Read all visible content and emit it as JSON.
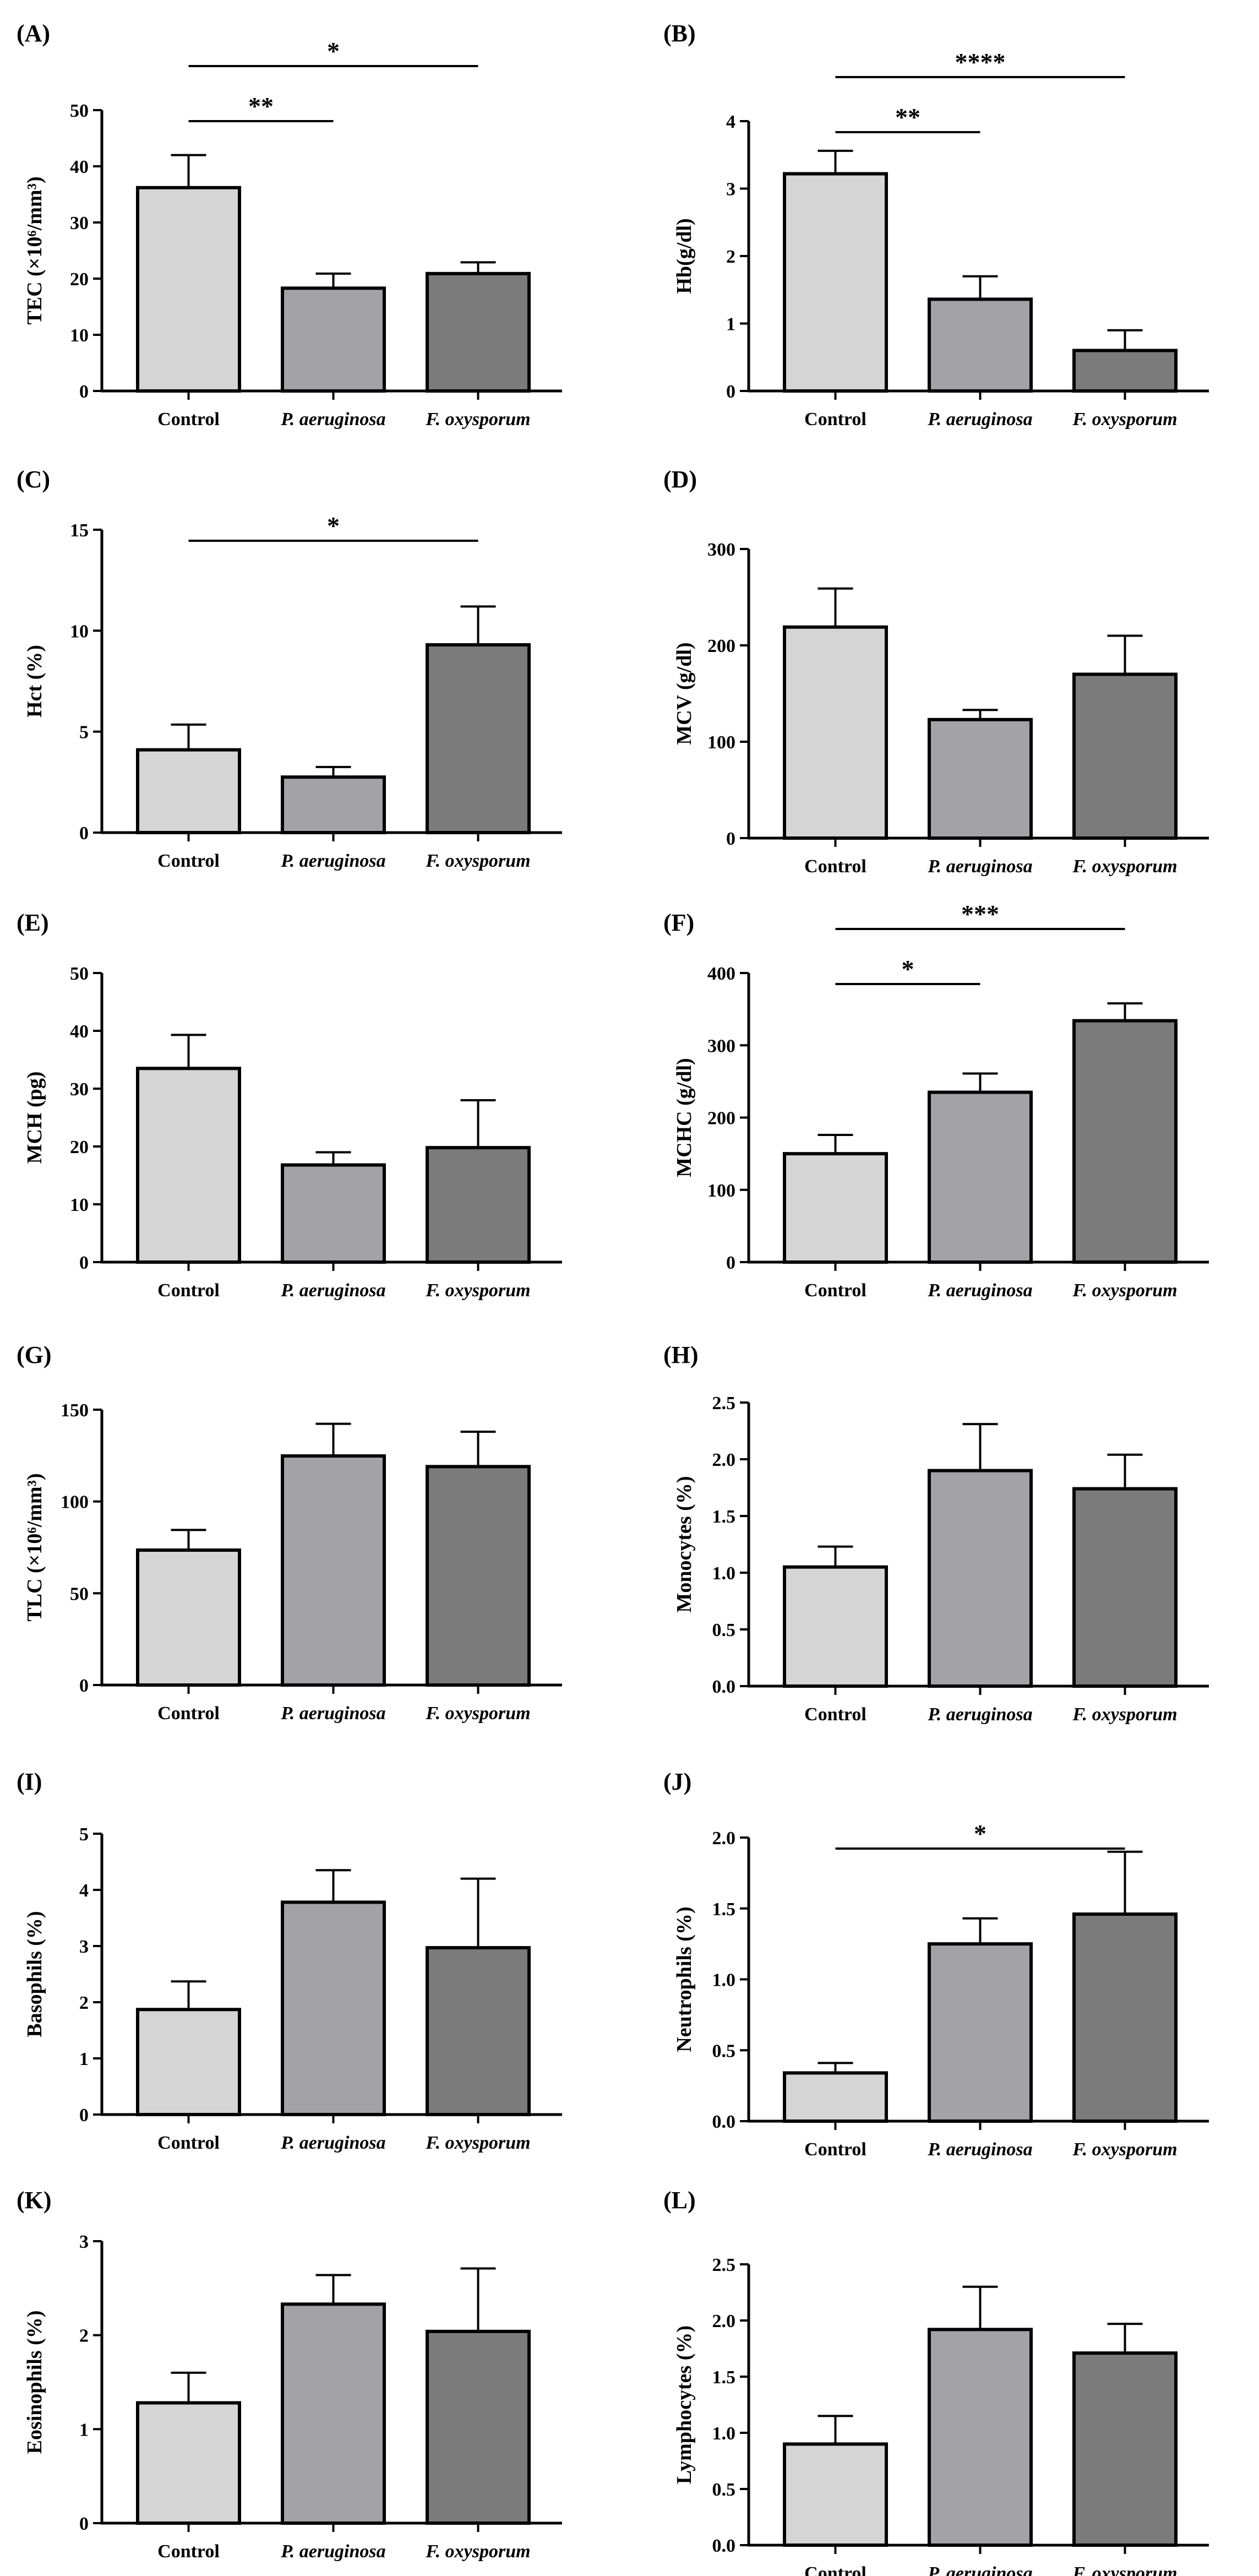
{
  "colors": {
    "control": "#d5d5d5",
    "p_aeruginosa": "#a3a3a7",
    "f_oxysporum": "#7b7b7b",
    "axis": "#000000"
  },
  "chart_data": [
    {
      "type": "bar",
      "panel": "(A)",
      "ylabel": "TEC (×10⁶/mm³)",
      "categories": [
        "Control",
        "P. aeruginosa",
        "F. oxysporum"
      ],
      "values": [
        36.2,
        18.3,
        20.9
      ],
      "errors": [
        5.8,
        2.6,
        2.0
      ],
      "ylim": [
        0,
        50
      ],
      "yticks": [
        0,
        10,
        20,
        30,
        40,
        50
      ],
      "significance": [
        {
          "from": 0,
          "to": 2,
          "label": "*",
          "level": 1
        },
        {
          "from": 0,
          "to": 1,
          "label": "**",
          "level": 0
        }
      ]
    },
    {
      "type": "bar",
      "panel": "(B)",
      "ylabel": "Hb(g/dl)",
      "categories": [
        "Control",
        "P. aeruginosa",
        "F. oxysporum"
      ],
      "values": [
        3.22,
        1.36,
        0.6
      ],
      "errors": [
        0.34,
        0.34,
        0.3
      ],
      "ylim": [
        0,
        4
      ],
      "yticks": [
        0,
        1,
        2,
        3,
        4
      ],
      "significance": [
        {
          "from": 0,
          "to": 2,
          "label": "****",
          "level": 1
        },
        {
          "from": 0,
          "to": 1,
          "label": "**",
          "level": 0
        }
      ]
    },
    {
      "type": "bar",
      "panel": "(C)",
      "ylabel": "Hct (%)",
      "categories": [
        "Control",
        "P. aeruginosa",
        "F. oxysporum"
      ],
      "values": [
        4.1,
        2.75,
        9.3
      ],
      "errors": [
        1.25,
        0.5,
        1.9
      ],
      "ylim": [
        0,
        15
      ],
      "yticks": [
        0,
        5,
        10,
        15
      ],
      "significance": [
        {
          "from": 0,
          "to": 2,
          "label": "*",
          "level": 0
        }
      ]
    },
    {
      "type": "bar",
      "panel": "(D)",
      "ylabel": "MCV (g/dl)",
      "categories": [
        "Control",
        "P. aeruginosa",
        "F. oxysporum"
      ],
      "values": [
        219,
        123,
        170
      ],
      "errors": [
        40,
        10,
        40
      ],
      "ylim": [
        0,
        300
      ],
      "yticks": [
        0,
        100,
        200,
        300
      ],
      "significance": []
    },
    {
      "type": "bar",
      "panel": "(E)",
      "ylabel": "MCH (pg)",
      "categories": [
        "Control",
        "P. aeruginosa",
        "F. oxysporum"
      ],
      "values": [
        33.5,
        16.8,
        19.8
      ],
      "errors": [
        5.8,
        2.2,
        8.2
      ],
      "ylim": [
        0,
        50
      ],
      "yticks": [
        0,
        10,
        20,
        30,
        40,
        50
      ],
      "significance": []
    },
    {
      "type": "bar",
      "panel": "(F)",
      "ylabel": "MCHC (g/dl)",
      "categories": [
        "Control",
        "P. aeruginosa",
        "F. oxysporum"
      ],
      "values": [
        150,
        235,
        334
      ],
      "errors": [
        26,
        26,
        24
      ],
      "ylim": [
        0,
        400
      ],
      "yticks": [
        0,
        100,
        200,
        300,
        400
      ],
      "significance": [
        {
          "from": 0,
          "to": 2,
          "label": "***",
          "level": 1
        },
        {
          "from": 0,
          "to": 1,
          "label": "*",
          "level": 0
        }
      ]
    },
    {
      "type": "bar",
      "panel": "(G)",
      "ylabel": "TLC (×10⁶/mm³)",
      "categories": [
        "Control",
        "P. aeruginosa",
        "F. oxysporum"
      ],
      "values": [
        73.5,
        124.8,
        119
      ],
      "errors": [
        11,
        17.5,
        19
      ],
      "ylim": [
        0,
        150
      ],
      "yticks": [
        0,
        50,
        100,
        150
      ],
      "significance": []
    },
    {
      "type": "bar",
      "panel": "(H)",
      "ylabel": "Monocytes (%)",
      "categories": [
        "Control",
        "P. aeruginosa",
        "F. oxysporum"
      ],
      "values": [
        1.05,
        1.9,
        1.74
      ],
      "errors": [
        0.18,
        0.41,
        0.3
      ],
      "ylim": [
        0,
        2.5
      ],
      "yticks": [
        "0.0",
        "0.5",
        "1.0",
        "1.5",
        "2.0",
        "2.5"
      ],
      "significance": []
    },
    {
      "type": "bar",
      "panel": "(I)",
      "ylabel": "Basophils (%)",
      "categories": [
        "Control",
        "P. aeruginosa",
        "F. oxysporum"
      ],
      "values": [
        1.87,
        3.78,
        2.97
      ],
      "errors": [
        0.5,
        0.57,
        1.23
      ],
      "ylim": [
        0,
        5
      ],
      "yticks": [
        0,
        1,
        2,
        3,
        4,
        5
      ],
      "significance": []
    },
    {
      "type": "bar",
      "panel": "(J)",
      "ylabel": "Neutrophils (%)",
      "categories": [
        "Control",
        "P. aeruginosa",
        "F. oxysporum"
      ],
      "values": [
        0.34,
        1.25,
        1.46
      ],
      "errors": [
        0.07,
        0.18,
        0.44
      ],
      "ylim": [
        0,
        2.0
      ],
      "yticks": [
        "0.0",
        "0.5",
        "1.0",
        "1.5",
        "2.0"
      ],
      "significance": [
        {
          "from": 0,
          "to": 2,
          "label": "*",
          "level": 0
        }
      ]
    },
    {
      "type": "bar",
      "panel": "(K)",
      "ylabel": "Eosinophils (%)",
      "categories": [
        "Control",
        "P. aeruginosa",
        "F. oxysporum"
      ],
      "values": [
        1.28,
        2.33,
        2.04
      ],
      "errors": [
        0.32,
        0.31,
        0.67
      ],
      "ylim": [
        0,
        3
      ],
      "yticks": [
        0,
        1,
        2,
        3
      ],
      "significance": []
    },
    {
      "type": "bar",
      "panel": "(L)",
      "ylabel": "Lymphocytes (%)",
      "categories": [
        "Control",
        "P. aeruginosa",
        "F. oxysporum"
      ],
      "values": [
        0.9,
        1.92,
        1.71
      ],
      "errors": [
        0.25,
        0.38,
        0.26
      ],
      "ylim": [
        0,
        2.5
      ],
      "yticks": [
        "0.0",
        "0.5",
        "1.0",
        "1.5",
        "2.0",
        "2.5"
      ],
      "significance": []
    }
  ]
}
